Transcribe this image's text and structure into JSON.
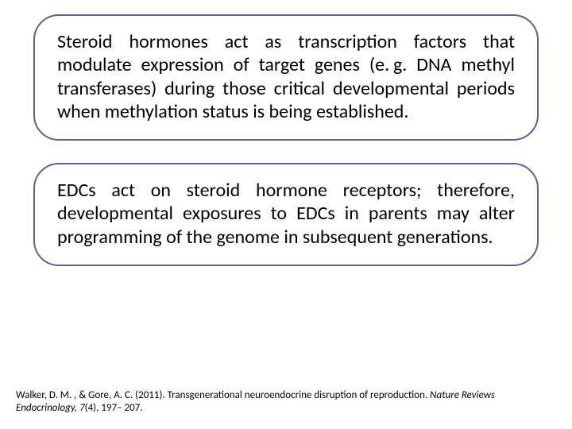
{
  "layout": {
    "background_color": "#ffffff",
    "callout_border_color": "#6b5b95",
    "callout_border_width": 2,
    "callout_border_radius": 32,
    "text_color": "#000000",
    "body_font_size": 24,
    "citation_font_size": 13
  },
  "callouts": [
    {
      "text": "Steroid hormones act as transcription factors that modulate expression of target genes (e. g. DNA methyl transferases) during those critical developmental periods when methylation status is being established."
    },
    {
      "text": "EDCs act on steroid hormone receptors; therefore, developmental exposures to EDCs in parents may alter programming of the genome in subsequent generations."
    }
  ],
  "citation": {
    "prefix": "Walker, D. M. , & Gore, A. C. (2011). Transgenerational neuroendocrine disruption of reproduction. ",
    "journal": "Nature Reviews Endocrinology, 7",
    "suffix": "(4), 197– 207."
  }
}
